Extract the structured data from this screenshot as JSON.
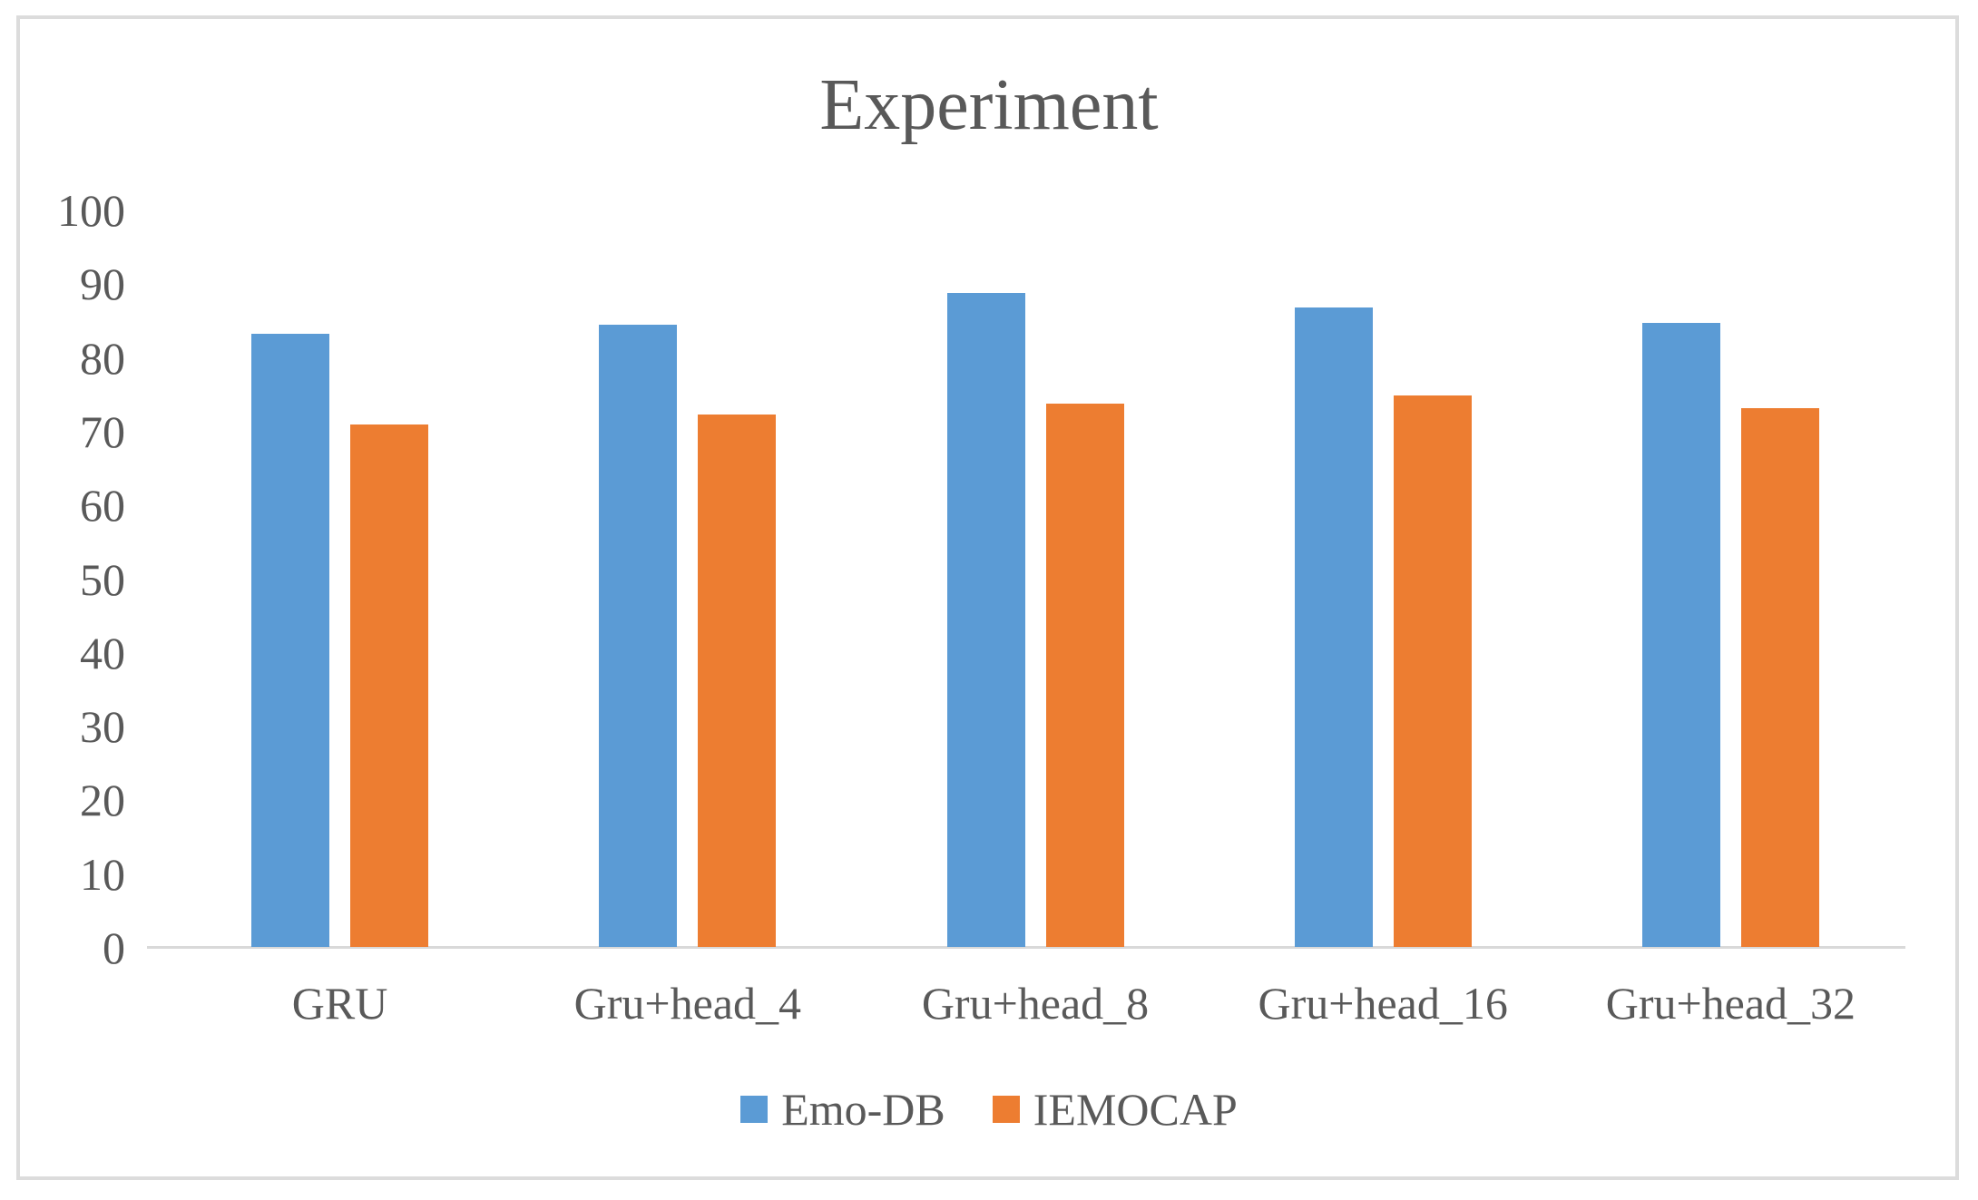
{
  "chart_data": {
    "type": "bar",
    "title": "Experiment",
    "xlabel": "",
    "ylabel": "",
    "categories": [
      "GRU",
      "Gru+head_4",
      "Gru+head_8",
      "Gru+head_16",
      "Gru+head_32"
    ],
    "series": [
      {
        "name": "Emo-DB",
        "color": "#5b9bd5",
        "values": [
          83.3,
          84.5,
          88.8,
          86.8,
          84.7
        ]
      },
      {
        "name": "IEMOCAP",
        "color": "#ed7d31",
        "values": [
          71.0,
          72.3,
          73.8,
          74.9,
          73.2
        ]
      }
    ],
    "ylim": [
      0,
      100
    ],
    "yticks": [
      0,
      10,
      20,
      30,
      40,
      50,
      60,
      70,
      80,
      90,
      100
    ],
    "grid": false,
    "legend_position": "bottom"
  },
  "colors": {
    "text": "#595959",
    "axis_line": "#d9d9d9",
    "frame_border": "#dcdcdc",
    "background": "#ffffff"
  }
}
